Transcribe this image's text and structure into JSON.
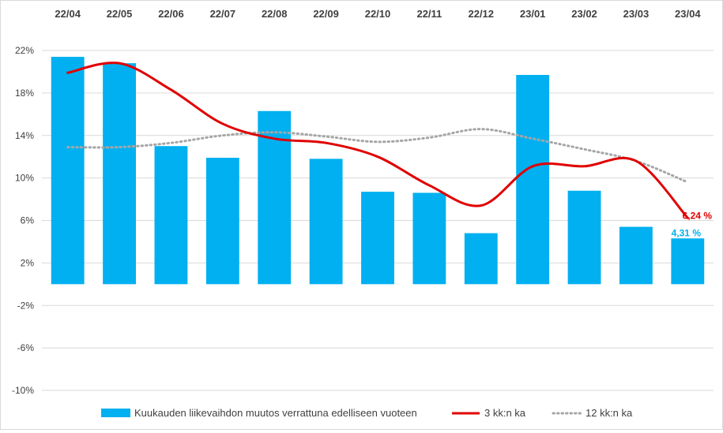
{
  "chart_data": {
    "type": "bar",
    "categories": [
      "22/04",
      "22/05",
      "22/06",
      "22/07",
      "22/08",
      "22/09",
      "22/10",
      "22/11",
      "22/12",
      "23/01",
      "23/02",
      "23/03",
      "23/04"
    ],
    "ylim": [
      -10,
      22
    ],
    "yticks": [
      22,
      18,
      14,
      10,
      6,
      2,
      -2,
      -6,
      -10
    ],
    "ytick_labels": [
      "22%",
      "18%",
      "14%",
      "10%",
      "6%",
      "2%",
      "-2%",
      "-6%",
      "-10%"
    ],
    "series": [
      {
        "name": "Kuukauden liikevaihdon muutos verrattuna edelliseen vuoteen",
        "kind": "bar",
        "color": "#00b0f0",
        "values": [
          21.4,
          20.8,
          13.0,
          11.9,
          16.3,
          11.8,
          8.7,
          8.6,
          4.8,
          19.7,
          8.8,
          5.4,
          4.31
        ]
      },
      {
        "name": "3 kk:n ka",
        "kind": "line",
        "color": "#e00000",
        "values": [
          19.9,
          20.8,
          18.3,
          15.1,
          13.7,
          13.3,
          12.0,
          9.3,
          7.4,
          11.1,
          11.1,
          11.6,
          6.24
        ]
      },
      {
        "name": "12 kk:n ka",
        "kind": "line-dotted",
        "color": "#a6a6a6",
        "values": [
          12.9,
          12.9,
          13.3,
          14.0,
          14.3,
          13.9,
          13.4,
          13.8,
          14.6,
          13.7,
          12.7,
          11.6,
          9.6
        ]
      }
    ],
    "annotations": [
      {
        "text": "6,24 %",
        "series": 1,
        "index": 12,
        "color": "#e00000"
      },
      {
        "text": "4,31 %",
        "series": 0,
        "index": 12,
        "color": "#00b0f0"
      }
    ],
    "grid": "horizontal",
    "category_axis_position": "top",
    "legend_position": "bottom",
    "title": "",
    "xlabel": "",
    "ylabel": ""
  }
}
